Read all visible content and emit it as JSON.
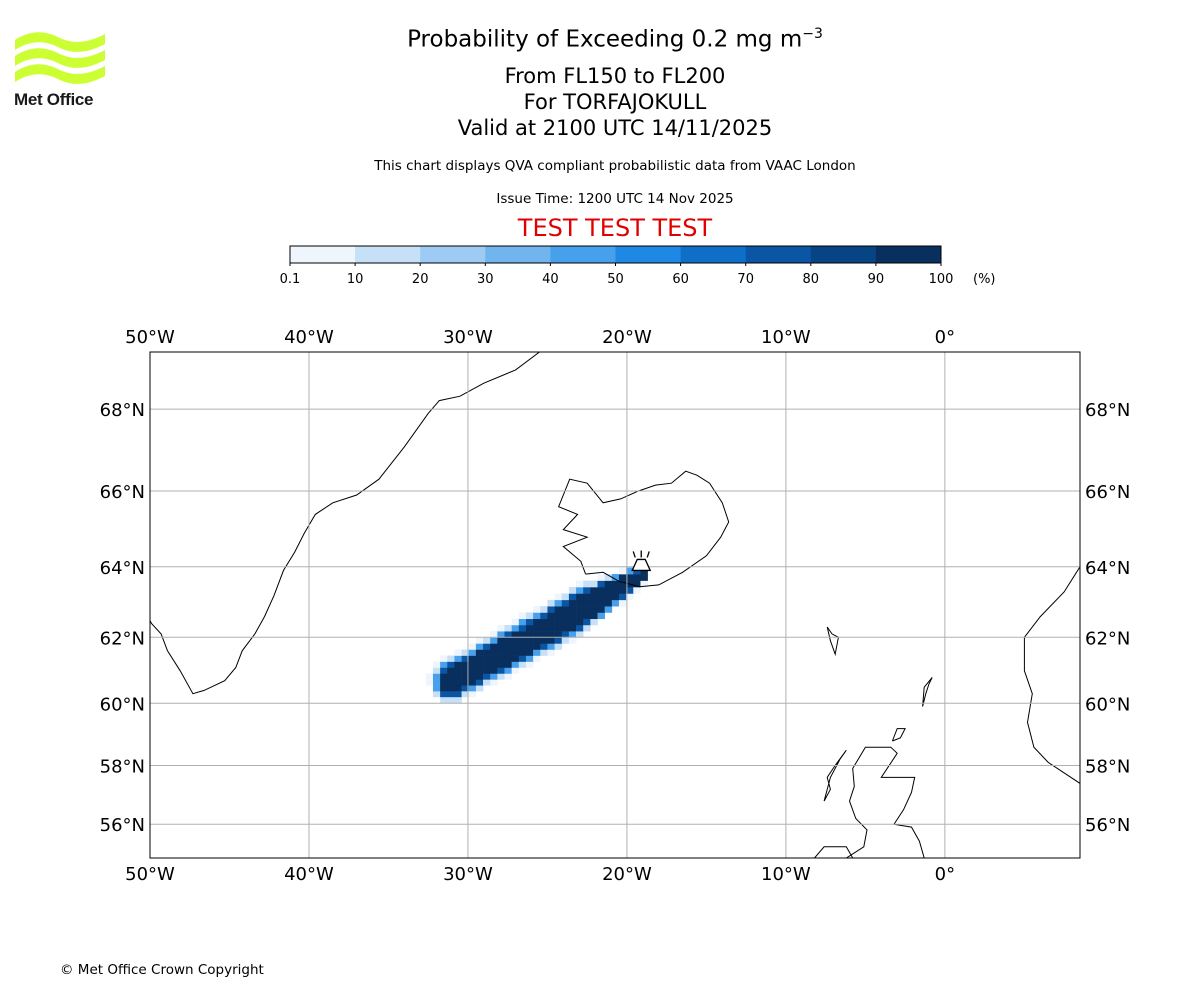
{
  "header": {
    "title_prefix": "Probability of Exceeding 0.2 mg m",
    "title_exponent": "−3",
    "levels": "From FL150 to FL200",
    "volcano": "For TORFAJOKULL",
    "valid": "Valid at 2100 UTC 14/11/2025",
    "info": "This chart displays QVA compliant probabilistic data from VAAC London",
    "issue": "Issue Time: 1200 UTC 14 Nov 2025",
    "test_banner": "TEST TEST TEST",
    "test_color": "#e00000"
  },
  "logo": {
    "text": "Met Office",
    "color": "#ccff33"
  },
  "colorbar": {
    "ticks": [
      "0.1",
      "10",
      "20",
      "30",
      "40",
      "50",
      "60",
      "70",
      "80",
      "90",
      "100"
    ],
    "unit": "(%)",
    "colors": [
      "#eef5fd",
      "#c6e0f8",
      "#9ecbf3",
      "#72b4ee",
      "#46a0ec",
      "#1f88e5",
      "#0f6fc8",
      "#0a56a5",
      "#074483",
      "#082f5e"
    ]
  },
  "chart_data": {
    "type": "heatmap",
    "title": "Probability of Exceeding 0.2 mg m−3",
    "x_range": [
      -50,
      8.5
    ],
    "y_range": [
      54.8,
      69.3
    ],
    "x_ticks": [
      -50,
      -40,
      -30,
      -20,
      -10,
      0
    ],
    "x_tick_labels": [
      "50°W",
      "40°W",
      "30°W",
      "20°W",
      "10°W",
      "0°"
    ],
    "y_ticks": [
      56,
      58,
      60,
      62,
      64,
      66,
      68
    ],
    "y_tick_labels": [
      "56°N",
      "58°N",
      "60°N",
      "62°N",
      "64°N",
      "66°N",
      "68°N"
    ],
    "grid": true,
    "volcano": {
      "name": "TORFAJOKULL",
      "lon": -19.1,
      "lat": 63.9
    },
    "plume": {
      "unit": "%",
      "core_probability": 95,
      "source": [
        -19.0,
        63.8
      ],
      "end": [
        -31.0,
        60.7
      ],
      "half_width_deg": 1.15
    }
  },
  "footer": {
    "copyright": "© Met Office Crown Copyright"
  }
}
